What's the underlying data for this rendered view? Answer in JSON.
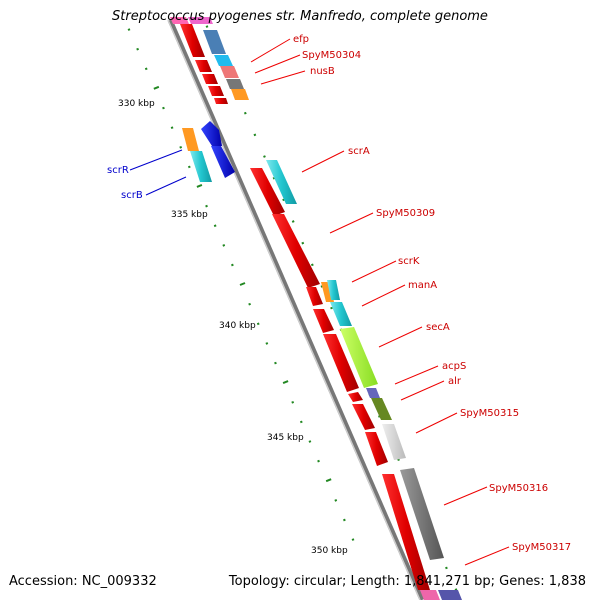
{
  "title": "Streptococcus pyogenes str. Manfredo, complete genome",
  "footer": {
    "accession": "Accession: NC_009332",
    "stats": "Topology: circular; Length: 1,841,271 bp; Genes: 1,838"
  },
  "kbp_labels": [
    "330 kbp",
    "335 kbp",
    "340 kbp",
    "345 kbp",
    "350 kbp"
  ],
  "gene_labels": [
    {
      "text": "efp",
      "color": "#cc0000"
    },
    {
      "text": "SpyM50304",
      "color": "#cc0000"
    },
    {
      "text": "nusB",
      "color": "#cc0000"
    },
    {
      "text": "scrR",
      "color": "#0000cc"
    },
    {
      "text": "scrB",
      "color": "#0000cc"
    },
    {
      "text": "scrA",
      "color": "#cc0000"
    },
    {
      "text": "SpyM50309",
      "color": "#cc0000"
    },
    {
      "text": "scrK",
      "color": "#cc0000"
    },
    {
      "text": "manA",
      "color": "#cc0000"
    },
    {
      "text": "secA",
      "color": "#cc0000"
    },
    {
      "text": "acpS",
      "color": "#cc0000"
    },
    {
      "text": "alr",
      "color": "#cc0000"
    },
    {
      "text": "SpyM50315",
      "color": "#cc0000"
    },
    {
      "text": "SpyM50316",
      "color": "#cc0000"
    },
    {
      "text": "SpyM50317",
      "color": "#cc0000"
    }
  ]
}
